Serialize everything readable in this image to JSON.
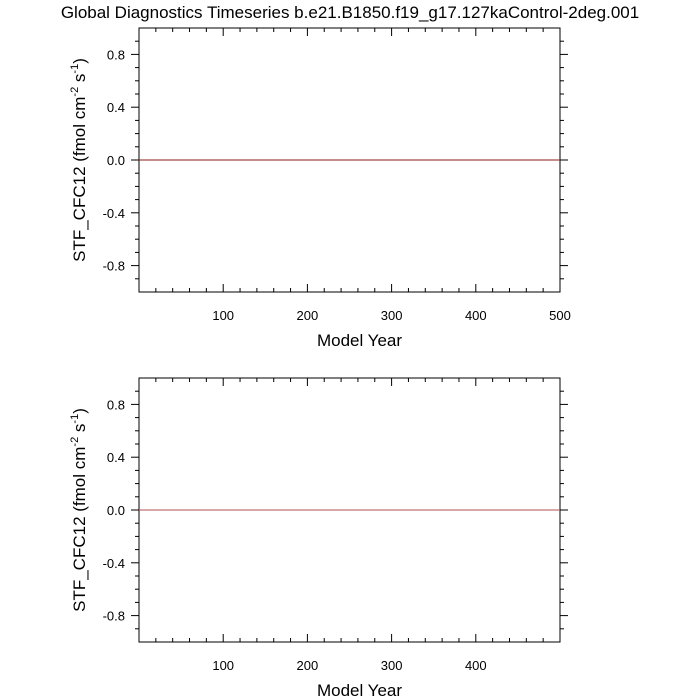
{
  "title": "Global Diagnostics Timeseries b.e21.B1850.f19_g17.127kaControl-2deg.001",
  "chart_data": [
    {
      "type": "line",
      "xlabel": "Model Year",
      "ylabel": {
        "text": "STF_CFC12 (fmol cm",
        "exp1": "-2",
        "mid": " s",
        "exp2": "-1",
        "end": ")"
      },
      "xlim": [
        0,
        500
      ],
      "ylim": [
        -1.0,
        1.0
      ],
      "x_ticks": [
        100,
        200,
        300,
        400,
        500
      ],
      "x_tick_labels": [
        "100",
        "200",
        "300",
        "400",
        "500"
      ],
      "y_ticks": [
        0.8,
        0.4,
        0.0,
        -0.4,
        -0.8
      ],
      "y_tick_labels": [
        "0.8",
        "0.4",
        "0.0",
        "-0.4",
        "-0.8"
      ],
      "zero_line": true,
      "series": [
        {
          "x": [
            0,
            500
          ],
          "values": [
            0.0,
            0.0
          ],
          "color": "#8b1a1a"
        }
      ]
    },
    {
      "type": "line",
      "xlabel": "Model Year",
      "ylabel": {
        "text": "STF_CFC12 (fmol cm",
        "exp1": "-2",
        "mid": " s",
        "exp2": "-1",
        "end": ")"
      },
      "xlim": [
        0,
        500
      ],
      "ylim": [
        -1.0,
        1.0
      ],
      "x_ticks": [
        100,
        200,
        300,
        400
      ],
      "x_tick_labels": [
        "100",
        "200",
        "300",
        "400"
      ],
      "y_ticks": [
        0.8,
        0.4,
        0.0,
        -0.4,
        -0.8
      ],
      "y_tick_labels": [
        "0.8",
        "0.4",
        "0.0",
        "-0.4",
        "-0.8"
      ],
      "zero_line": true,
      "series": [
        {
          "x": [
            0,
            500
          ],
          "values": [
            0.0,
            0.0
          ],
          "color": "#b05050"
        }
      ]
    }
  ]
}
